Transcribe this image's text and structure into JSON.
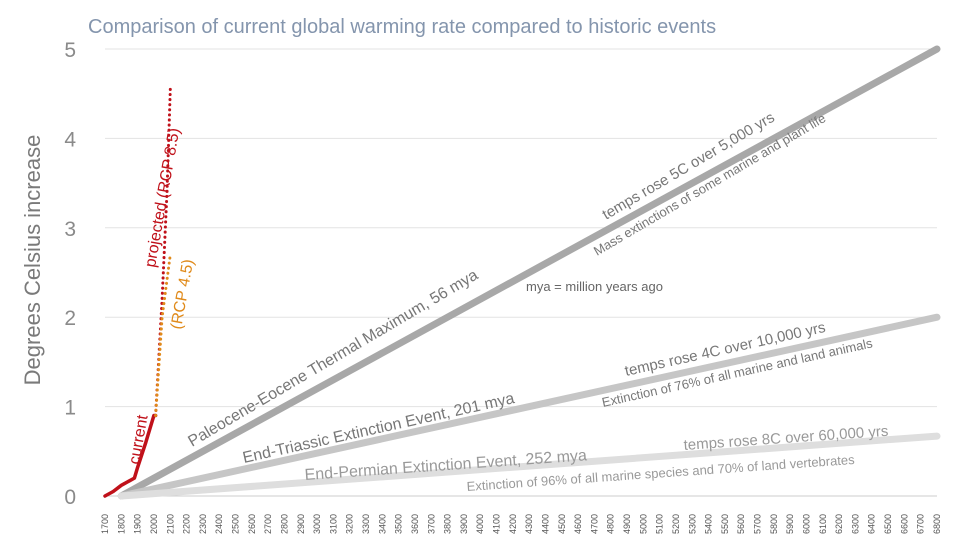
{
  "chart_data": {
    "type": "line",
    "title": "Comparison of current global warming rate compared to historic events",
    "xlabel": "",
    "ylabel": "Degrees Celsius increase",
    "xlim": [
      1700,
      6800
    ],
    "ylim": [
      0,
      5
    ],
    "x_ticks": [
      1700,
      1800,
      1900,
      2000,
      2100,
      2200,
      2300,
      2400,
      2500,
      2600,
      2700,
      2800,
      2900,
      3000,
      3100,
      3200,
      3300,
      3400,
      3500,
      3600,
      3700,
      3800,
      3900,
      4000,
      4100,
      4200,
      4300,
      4400,
      4500,
      4600,
      4700,
      4800,
      4900,
      5000,
      5100,
      5200,
      5300,
      5400,
      5500,
      5600,
      5700,
      5800,
      5900,
      6000,
      6100,
      6200,
      6300,
      6400,
      6500,
      6600,
      6700,
      6800
    ],
    "y_ticks": [
      0,
      1,
      2,
      3,
      4,
      5
    ],
    "grid": true,
    "series": [
      {
        "name": "current",
        "style": "solid",
        "color": "#c0111a",
        "points": [
          [
            1700,
            0
          ],
          [
            1750,
            0.05
          ],
          [
            1800,
            0.12
          ],
          [
            1850,
            0.17
          ],
          [
            1880,
            0.2
          ],
          [
            1900,
            0.32
          ],
          [
            1950,
            0.6
          ],
          [
            2000,
            0.9
          ],
          [
            2010,
            0.9
          ]
        ]
      },
      {
        "name": "projected (RCP 8.5)",
        "style": "dotted",
        "color": "#c0111a",
        "points": [
          [
            2010,
            0.9
          ],
          [
            2050,
            2.2
          ],
          [
            2080,
            3.4
          ],
          [
            2100,
            4.55
          ]
        ]
      },
      {
        "name": "(RCP 4.5)",
        "style": "dotted",
        "color": "#e08a1a",
        "points": [
          [
            2010,
            0.9
          ],
          [
            2050,
            2.0
          ],
          [
            2100,
            2.7
          ]
        ]
      },
      {
        "name": "Paleocene-Eocene Thermal Maximum, 56 mya",
        "style": "solid",
        "color": "#a8a8a8",
        "points": [
          [
            1800,
            0
          ],
          [
            6800,
            5
          ]
        ]
      },
      {
        "name": "End-Triassic Extinction Event, 201 mya",
        "style": "solid",
        "color": "#c6c6c6",
        "points": [
          [
            1800,
            0
          ],
          [
            6800,
            2
          ]
        ]
      },
      {
        "name": "End-Permian Extinction Event, 252 mya",
        "style": "solid",
        "color": "#dedede",
        "points": [
          [
            1800,
            0
          ],
          [
            6800,
            0.67
          ]
        ]
      }
    ],
    "annotations": {
      "current": "current",
      "rcp85": "projected (RCP 8.5)",
      "rcp45": "(RCP 4.5)",
      "petm_name": "Paleocene-Eocene Thermal Maximum, 56 mya",
      "petm_rate": "temps rose 5C over 5,000 yrs",
      "petm_effect": "Mass extinctions of some marine and plant life",
      "mya_note": "mya = million years ago",
      "triassic_name": "End-Triassic Extinction Event, 201 mya",
      "triassic_rate": "temps rose 4C over 10,000 yrs",
      "triassic_effect": "Extinction of 76% of all marine and land animals",
      "permian_name": "End-Permian Extinction Event, 252 mya",
      "permian_rate": "temps rose 8C over 60,000 yrs",
      "permian_effect": "Extinction of 96% of all marine species and 70% of land vertebrates"
    }
  }
}
